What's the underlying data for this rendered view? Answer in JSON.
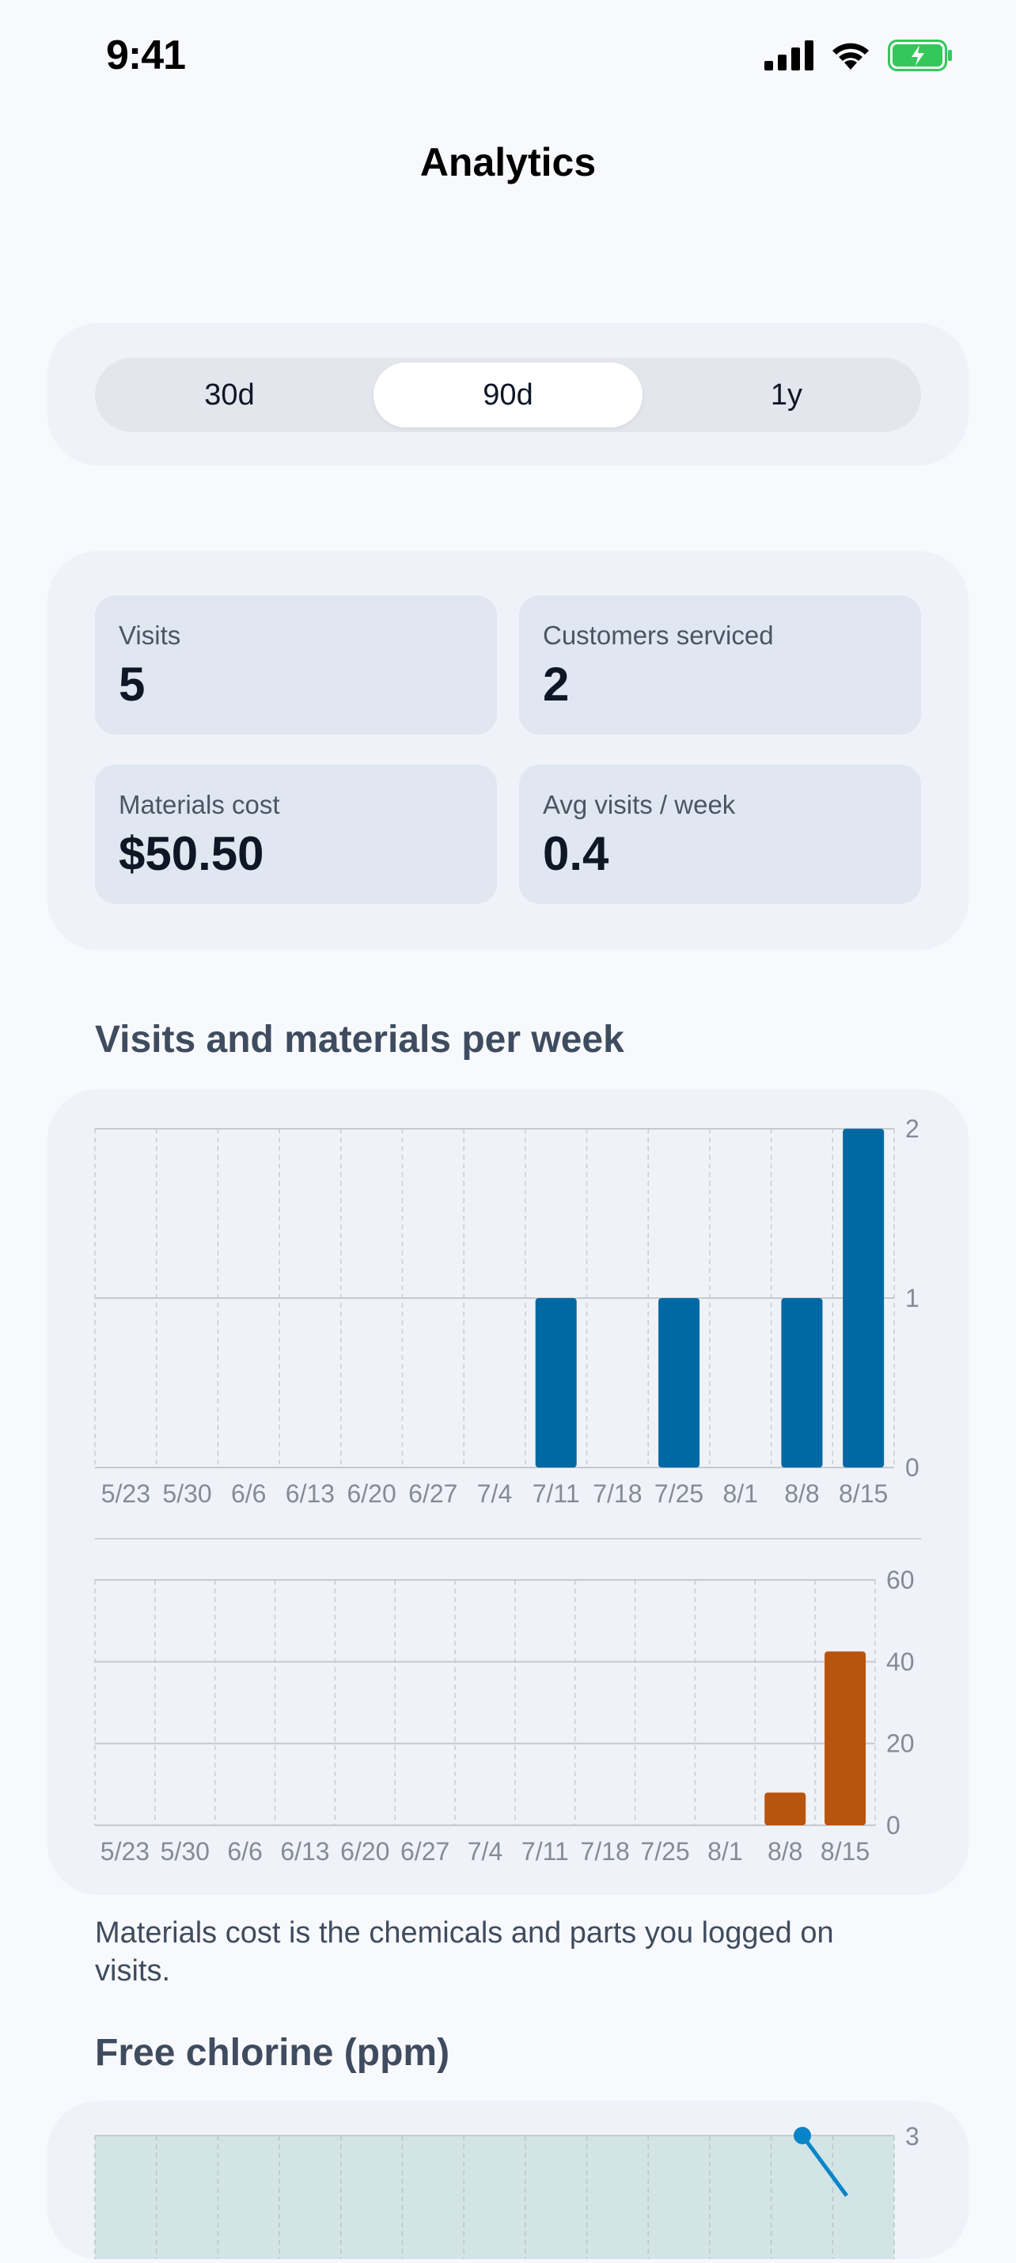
{
  "status": {
    "time": "9:41"
  },
  "nav": {
    "title": "Analytics"
  },
  "range": {
    "options": [
      "30d",
      "90d",
      "1y"
    ],
    "selected": "90d"
  },
  "stats": [
    {
      "label": "Visits",
      "value": "5"
    },
    {
      "label": "Customers serviced",
      "value": "2"
    },
    {
      "label": "Materials cost",
      "value": "$50.50"
    },
    {
      "label": "Avg visits / week",
      "value": "0.4"
    }
  ],
  "visits_section": {
    "title": "Visits and materials per week"
  },
  "chart_data": [
    {
      "type": "bar",
      "categories": [
        "5/23",
        "5/30",
        "6/6",
        "6/13",
        "6/20",
        "6/27",
        "7/4",
        "7/11",
        "7/18",
        "7/25",
        "8/1",
        "8/8",
        "8/15"
      ],
      "values": [
        0,
        0,
        0,
        0,
        0,
        0,
        0,
        1,
        0,
        1,
        0,
        1,
        2
      ],
      "yticks": [
        0,
        1,
        2
      ],
      "ylim": [
        0,
        2
      ],
      "color": "#0069a3"
    },
    {
      "type": "bar",
      "categories": [
        "5/23",
        "5/30",
        "6/6",
        "6/13",
        "6/20",
        "6/27",
        "7/4",
        "7/11",
        "7/18",
        "7/25",
        "8/1",
        "8/8",
        "8/15"
      ],
      "values": [
        0,
        0,
        0,
        0,
        0,
        0,
        0,
        0,
        0,
        0,
        0,
        8,
        42.5
      ],
      "yticks": [
        0,
        20,
        40,
        60
      ],
      "ylim": [
        0,
        60
      ],
      "color": "#b9540f"
    }
  ],
  "caption": "Materials cost is the chemicals and parts you logged on visits.",
  "chlorine_section": {
    "title": "Free chlorine (ppm)",
    "visible_tick": "3"
  }
}
